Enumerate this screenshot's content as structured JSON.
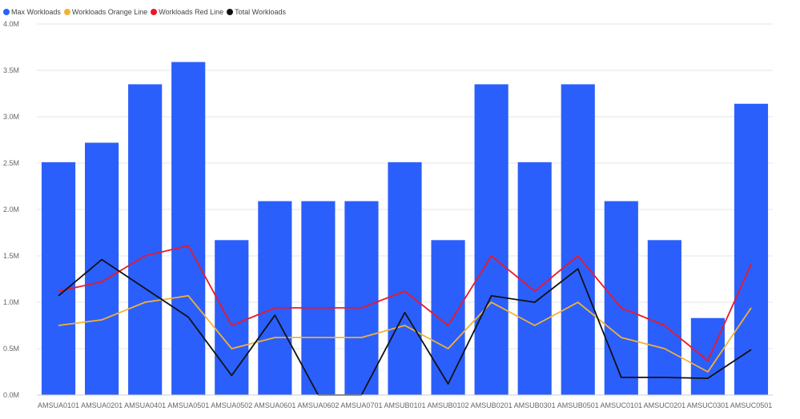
{
  "chart_data": {
    "type": "bar",
    "legend_position": "top-left",
    "grid": true,
    "categories": [
      "AMSUA0101",
      "AMSUA0201",
      "AMSUA0401",
      "AMSUA0501",
      "AMSUA0502",
      "AMSUA0601",
      "AMSUA0602",
      "AMSUA0701",
      "AMSUB0101",
      "AMSUB0102",
      "AMSUB0201",
      "AMSUB0301",
      "AMSUB0501",
      "AMSUC0101",
      "AMSUC0201",
      "AMSUC0301",
      "AMSUC0501"
    ],
    "ylim": [
      0,
      4000000
    ],
    "yticks": [
      {
        "value": 0,
        "label": "0.0M"
      },
      {
        "value": 500000,
        "label": "0.5M"
      },
      {
        "value": 1000000,
        "label": "1.0M"
      },
      {
        "value": 1500000,
        "label": "1.5M"
      },
      {
        "value": 2000000,
        "label": "2.0M"
      },
      {
        "value": 2500000,
        "label": "2.5M"
      },
      {
        "value": 3000000,
        "label": "3.0M"
      },
      {
        "value": 3500000,
        "label": "3.5M"
      },
      {
        "value": 4000000,
        "label": "4.0M"
      }
    ],
    "series": [
      {
        "name": "Max Workloads",
        "kind": "bar",
        "color": "#2B5FFB",
        "values": [
          2510000,
          2720000,
          3350000,
          3590000,
          1670000,
          2090000,
          2090000,
          2090000,
          2510000,
          1670000,
          3350000,
          2510000,
          3350000,
          2090000,
          1670000,
          830000,
          3140000
        ]
      },
      {
        "name": "Workloads Orange Line",
        "kind": "line",
        "color": "#F2B233",
        "values": [
          750000,
          810000,
          1000000,
          1070000,
          500000,
          620000,
          620000,
          620000,
          750000,
          500000,
          1000000,
          750000,
          1000000,
          620000,
          500000,
          250000,
          940000
        ]
      },
      {
        "name": "Workloads Red Line",
        "kind": "line",
        "color": "#E8192C",
        "values": [
          1120000,
          1220000,
          1500000,
          1610000,
          750000,
          940000,
          940000,
          940000,
          1120000,
          750000,
          1500000,
          1120000,
          1500000,
          940000,
          750000,
          370000,
          1410000
        ]
      },
      {
        "name": "Total Workloads",
        "kind": "line",
        "color": "#111111",
        "values": [
          1070000,
          1460000,
          1150000,
          840000,
          210000,
          860000,
          0,
          0,
          890000,
          120000,
          1070000,
          1000000,
          1360000,
          190000,
          190000,
          180000,
          490000
        ]
      }
    ]
  }
}
